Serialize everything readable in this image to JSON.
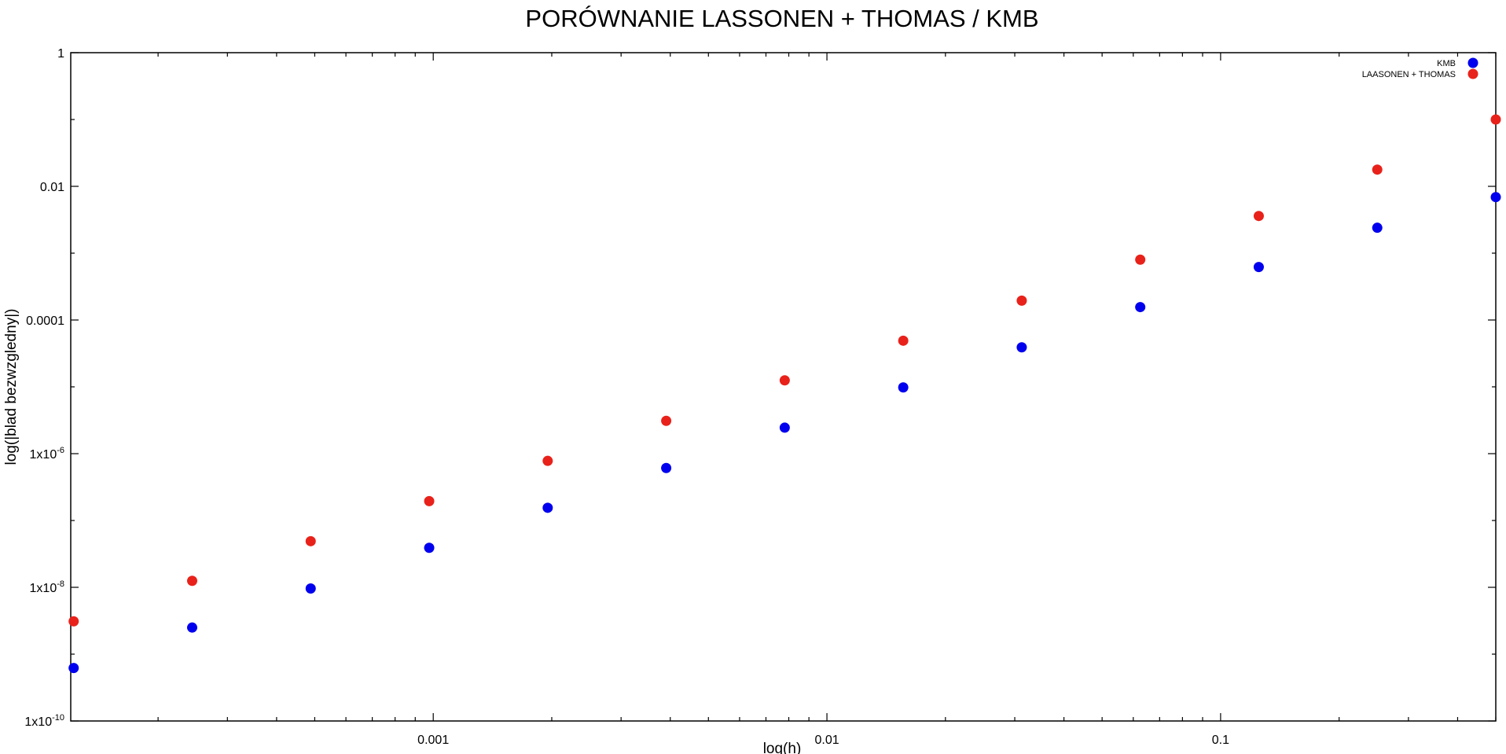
{
  "chart_data": {
    "type": "scatter",
    "title": "PORÓWNANIE LASSONEN + THOMAS / KMB",
    "xlabel": "log(h)",
    "ylabel": "log(|blad bezwzgledny|)",
    "xscale": "log",
    "yscale": "log",
    "xlim": [
      0.00012,
      0.5
    ],
    "ylim": [
      1e-10,
      1
    ],
    "x_ticks": [
      {
        "value": 0.001,
        "label": "0.001"
      },
      {
        "value": 0.01,
        "label": "0.01"
      },
      {
        "value": 0.1,
        "label": "0.1"
      }
    ],
    "y_ticks": [
      {
        "value": 1,
        "label": "1",
        "mant": "1",
        "exp": ""
      },
      {
        "value": 0.01,
        "label": "0.01",
        "mant": "0.01",
        "exp": ""
      },
      {
        "value": 0.0001,
        "label": "0.0001",
        "mant": "0.0001",
        "exp": ""
      },
      {
        "value": 1e-06,
        "label": "1x10-6",
        "mant": "1x10",
        "exp": "-6"
      },
      {
        "value": 1e-08,
        "label": "1x10-8",
        "mant": "1x10",
        "exp": "-8"
      },
      {
        "value": 1e-10,
        "label": "1x10-10",
        "mant": "1x10",
        "exp": "-10"
      }
    ],
    "grid": false,
    "legend_position": "top-right",
    "series": [
      {
        "name": "KMB",
        "color": "#0000ee",
        "x": [
          0.00012207,
          0.00024414,
          0.00048828,
          0.00097656,
          0.00195313,
          0.00390625,
          0.0078125,
          0.015625,
          0.03125,
          0.0625,
          0.125,
          0.25,
          0.5
        ],
        "y": [
          6.2e-10,
          2.5e-09,
          9.6e-09,
          3.9e-08,
          1.55e-07,
          6.1e-07,
          2.45e-06,
          9.8e-06,
          3.9e-05,
          0.000156,
          0.00062,
          0.0024,
          0.0069
        ]
      },
      {
        "name": "LAASONEN + THOMAS",
        "color": "#e8221a",
        "x": [
          0.00012207,
          0.00024414,
          0.00048828,
          0.00097656,
          0.00195313,
          0.00390625,
          0.0078125,
          0.015625,
          0.03125,
          0.0625,
          0.125,
          0.25,
          0.5
        ],
        "y": [
          3.1e-09,
          1.25e-08,
          4.9e-08,
          1.95e-07,
          7.8e-07,
          3.1e-06,
          1.25e-05,
          4.9e-05,
          0.000195,
          0.0008,
          0.0036,
          0.0178,
          0.1
        ]
      }
    ]
  }
}
